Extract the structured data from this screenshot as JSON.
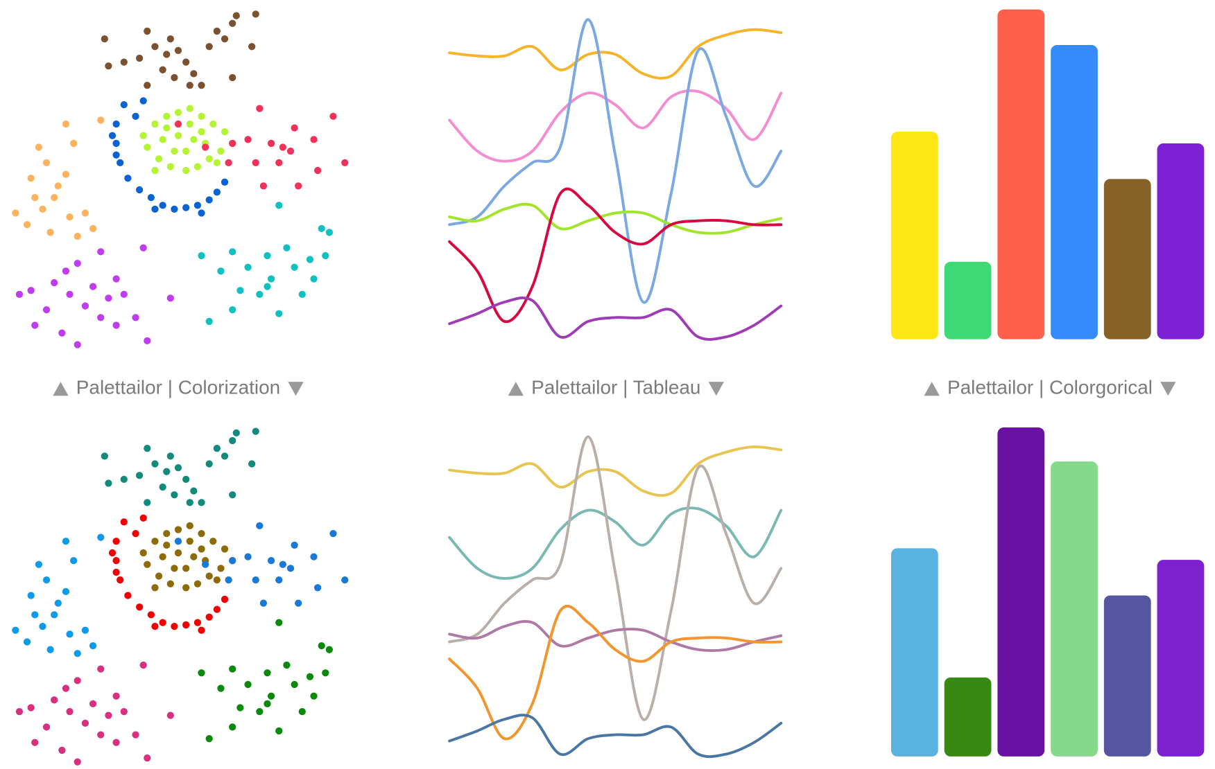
{
  "captions": [
    "Palettailor | Colorization",
    "Palettailor | Tableau",
    "Palettailor | Colorgorical"
  ],
  "chart_data": [
    {
      "type": "scatter",
      "xlim": [
        0,
        440
      ],
      "ylim": [
        0,
        440
      ],
      "series": [
        {
          "color": "#7a5230",
          "x": [
            180,
            190,
            205,
            220,
            230,
            200,
            215,
            240,
            250,
            180,
            150,
            130,
            260,
            280,
            290,
            320,
            295,
            270,
            290,
            315,
            170,
            235,
            125,
            210
          ],
          "y": [
            410,
            390,
            380,
            385,
            370,
            360,
            350,
            355,
            340,
            340,
            370,
            365,
            390,
            400,
            420,
            432,
            430,
            410,
            350,
            390,
            375,
            340,
            400,
            400
          ]
        },
        {
          "color": "#0b62d2",
          "x": [
            150,
            175,
            140,
            140,
            145,
            155,
            170,
            185,
            200,
            215,
            230,
            245,
            260,
            270,
            280,
            165,
            190,
            250,
            140,
            135
          ],
          "y": [
            315,
            320,
            290,
            265,
            240,
            220,
            205,
            195,
            185,
            180,
            182,
            185,
            192,
            202,
            215,
            300,
            180,
            175,
            250,
            275
          ]
        },
        {
          "color": "#b3f534",
          "x": [
            190,
            205,
            220,
            235,
            250,
            265,
            280,
            290,
            275,
            260,
            245,
            230,
            210,
            195,
            180,
            175,
            200,
            220,
            240,
            255,
            230,
            215,
            205,
            250,
            235,
            270,
            190
          ],
          "y": [
            290,
            300,
            305,
            310,
            300,
            290,
            280,
            265,
            255,
            245,
            235,
            230,
            235,
            245,
            260,
            275,
            270,
            275,
            270,
            265,
            255,
            255,
            285,
            280,
            290,
            240,
            230
          ]
        },
        {
          "color": "#f0325a",
          "x": [
            290,
            310,
            325,
            340,
            355,
            370,
            365,
            395,
            420,
            435,
            400,
            375,
            330,
            320,
            350,
            285,
            220,
            255
          ],
          "y": [
            265,
            270,
            310,
            265,
            260,
            285,
            255,
            270,
            300,
            240,
            230,
            210,
            210,
            240,
            240,
            240,
            290,
            260
          ]
        },
        {
          "color": "#fcb35f",
          "x": [
            40,
            75,
            85,
            120,
            50,
            30,
            60,
            45,
            25,
            10,
            80,
            100,
            110,
            55,
            75,
            35,
            65,
            90
          ],
          "y": [
            260,
            290,
            265,
            295,
            240,
            220,
            195,
            180,
            160,
            175,
            170,
            175,
            155,
            150,
            225,
            195,
            210,
            145
          ]
        },
        {
          "color": "#c03cf0",
          "x": [
            90,
            120,
            140,
            110,
            80,
            60,
            30,
            15,
            50,
            100,
            130,
            150,
            175,
            165,
            180,
            70,
            90,
            35,
            120,
            210,
            140,
            75
          ],
          "y": [
            110,
            125,
            90,
            80,
            70,
            85,
            75,
            70,
            50,
            55,
            65,
            70,
            130,
            40,
            10,
            20,
            5,
            30,
            40,
            65,
            30,
            100
          ]
        },
        {
          "color": "#12c0c0",
          "x": [
            250,
            275,
            290,
            310,
            335,
            360,
            370,
            390,
            410,
            415,
            405,
            300,
            325,
            350,
            290,
            260,
            335,
            395,
            380,
            340,
            350
          ],
          "y": [
            120,
            100,
            125,
            105,
            120,
            130,
            105,
            115,
            120,
            150,
            155,
            75,
            70,
            45,
            50,
            35,
            80,
            90,
            70,
            90,
            185
          ]
        }
      ]
    },
    {
      "type": "line",
      "x": [
        0,
        36,
        71,
        107,
        143,
        179,
        214,
        250,
        286,
        321,
        357,
        393,
        428
      ],
      "xlim": [
        0,
        428
      ],
      "ylim": [
        0,
        440
      ],
      "series": [
        {
          "color": "#f7b32b",
          "values": [
            382,
            378,
            378,
            390,
            360,
            380,
            380,
            355,
            352,
            390,
            405,
            412,
            408
          ]
        },
        {
          "color": "#f58bd0",
          "values": [
            295,
            255,
            242,
            255,
            305,
            330,
            315,
            285,
            325,
            332,
            310,
            270,
            330
          ]
        },
        {
          "color": "#7ba7e3",
          "values": [
            160,
            170,
            210,
            240,
            260,
            425,
            250,
            60,
            200,
            385,
            300,
            210,
            255
          ]
        },
        {
          "color": "#a0e52a",
          "values": [
            170,
            165,
            180,
            185,
            155,
            165,
            175,
            175,
            160,
            150,
            150,
            160,
            168
          ]
        },
        {
          "color": "#d7083f",
          "values": [
            138,
            100,
            35,
            80,
            200,
            185,
            150,
            135,
            160,
            165,
            165,
            160,
            160
          ]
        },
        {
          "color": "#9e3cb6",
          "values": [
            32,
            45,
            60,
            62,
            15,
            35,
            40,
            40,
            50,
            15,
            15,
            30,
            55
          ]
        }
      ]
    },
    {
      "type": "bar",
      "ylim": [
        0,
        428
      ],
      "values": [
        268,
        100,
        426,
        380,
        207,
        253
      ],
      "colors": [
        "#fde614",
        "#3dd975",
        "#ff604b",
        "#358bfb",
        "#866128",
        "#7d20d6"
      ]
    },
    {
      "type": "scatter",
      "xlim": [
        0,
        440
      ],
      "ylim": [
        0,
        440
      ],
      "series": [
        {
          "color": "#138a7c",
          "x": [
            180,
            190,
            205,
            220,
            230,
            200,
            215,
            240,
            250,
            180,
            150,
            130,
            260,
            280,
            290,
            320,
            295,
            270,
            290,
            315,
            170,
            235,
            125,
            210
          ],
          "y": [
            410,
            390,
            380,
            385,
            370,
            360,
            350,
            355,
            340,
            340,
            370,
            365,
            390,
            400,
            420,
            432,
            430,
            410,
            350,
            390,
            375,
            340,
            400,
            400
          ]
        },
        {
          "color": "#f20000",
          "x": [
            150,
            175,
            140,
            140,
            145,
            155,
            170,
            185,
            200,
            215,
            230,
            245,
            260,
            270,
            280,
            165,
            190,
            250,
            140,
            135
          ],
          "y": [
            315,
            320,
            290,
            265,
            240,
            220,
            205,
            195,
            185,
            180,
            182,
            185,
            192,
            202,
            215,
            300,
            180,
            175,
            250,
            275
          ]
        },
        {
          "color": "#8c6b08",
          "x": [
            190,
            205,
            220,
            235,
            250,
            265,
            280,
            290,
            275,
            260,
            245,
            230,
            210,
            195,
            180,
            175,
            200,
            220,
            240,
            255,
            230,
            215,
            205,
            250,
            235,
            270,
            190
          ],
          "y": [
            290,
            300,
            305,
            310,
            300,
            290,
            280,
            265,
            255,
            245,
            235,
            230,
            235,
            245,
            260,
            275,
            270,
            275,
            270,
            265,
            255,
            255,
            285,
            280,
            290,
            240,
            230
          ]
        },
        {
          "color": "#1a78d6",
          "x": [
            290,
            310,
            325,
            340,
            355,
            370,
            365,
            395,
            420,
            435,
            400,
            375,
            330,
            320,
            350,
            285,
            220,
            255
          ],
          "y": [
            265,
            270,
            310,
            265,
            260,
            285,
            255,
            270,
            300,
            240,
            230,
            210,
            210,
            240,
            240,
            240,
            290,
            260
          ]
        },
        {
          "color": "#0d9ae8",
          "x": [
            40,
            75,
            85,
            120,
            50,
            30,
            60,
            45,
            25,
            10,
            80,
            100,
            110,
            55,
            75,
            35,
            65,
            90
          ],
          "y": [
            260,
            290,
            265,
            295,
            240,
            220,
            195,
            180,
            160,
            175,
            170,
            175,
            155,
            150,
            225,
            195,
            210,
            145
          ]
        },
        {
          "color": "#d8307f",
          "x": [
            90,
            120,
            140,
            110,
            80,
            60,
            30,
            15,
            50,
            100,
            130,
            150,
            175,
            165,
            180,
            70,
            90,
            35,
            120,
            210,
            140,
            75
          ],
          "y": [
            110,
            125,
            90,
            80,
            70,
            85,
            75,
            70,
            50,
            55,
            65,
            70,
            130,
            40,
            10,
            20,
            5,
            30,
            40,
            65,
            30,
            100
          ]
        },
        {
          "color": "#0a8a0a",
          "x": [
            250,
            275,
            290,
            310,
            335,
            360,
            370,
            390,
            410,
            415,
            405,
            300,
            325,
            350,
            290,
            260,
            335,
            395,
            380,
            340,
            350
          ],
          "y": [
            120,
            100,
            125,
            105,
            120,
            130,
            105,
            115,
            120,
            150,
            155,
            75,
            70,
            45,
            50,
            35,
            80,
            90,
            70,
            90,
            185
          ]
        }
      ]
    },
    {
      "type": "line",
      "x": [
        0,
        36,
        71,
        107,
        143,
        179,
        214,
        250,
        286,
        321,
        357,
        393,
        428
      ],
      "xlim": [
        0,
        428
      ],
      "ylim": [
        0,
        440
      ],
      "series": [
        {
          "color": "#e8c450",
          "values": [
            382,
            378,
            378,
            390,
            360,
            380,
            380,
            355,
            352,
            390,
            405,
            412,
            408
          ]
        },
        {
          "color": "#7ab8b2",
          "values": [
            295,
            255,
            242,
            255,
            305,
            330,
            315,
            285,
            325,
            332,
            310,
            270,
            330
          ]
        },
        {
          "color": "#b8afaa",
          "values": [
            160,
            170,
            210,
            240,
            260,
            425,
            250,
            60,
            200,
            385,
            300,
            210,
            255
          ]
        },
        {
          "color": "#ae7aa5",
          "values": [
            170,
            165,
            180,
            185,
            155,
            165,
            175,
            175,
            160,
            150,
            150,
            160,
            168
          ]
        },
        {
          "color": "#f2952f",
          "values": [
            138,
            100,
            35,
            80,
            200,
            185,
            150,
            135,
            160,
            165,
            165,
            160,
            160
          ]
        },
        {
          "color": "#4a76a4",
          "values": [
            32,
            45,
            60,
            62,
            15,
            35,
            40,
            40,
            50,
            15,
            15,
            30,
            55
          ]
        }
      ]
    },
    {
      "type": "bar",
      "ylim": [
        0,
        428
      ],
      "values": [
        269,
        102,
        425,
        381,
        208,
        254
      ],
      "colors": [
        "#5ab2e0",
        "#378913",
        "#6910a5",
        "#85d98b",
        "#56559f",
        "#7c20d0"
      ]
    }
  ]
}
